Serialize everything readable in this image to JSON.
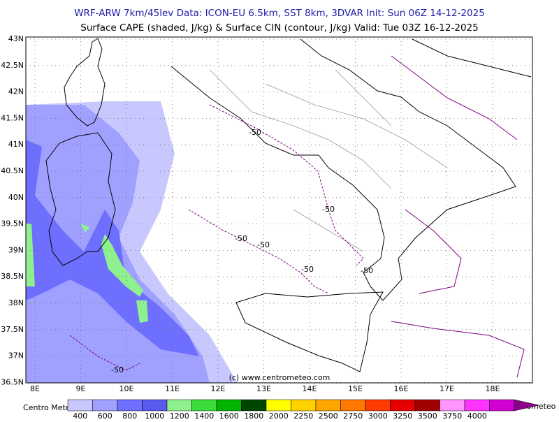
{
  "header": {
    "line1": "WRF-ARW 7km/45lev   Data: ICON-EU 6.5km, SST 8km, 3DVAR   Init: Sun 06Z 14-12-2025",
    "line2": "Surface CAPE (shaded, J/kg) & Surface CIN (contour, J/kg)   Valid: Tue 03Z 16-12-2025"
  },
  "map": {
    "lat_labels": [
      "43N",
      "42.5N",
      "42N",
      "41.5N",
      "41N",
      "40.5N",
      "40N",
      "39.5N",
      "39N",
      "38.5N",
      "38N",
      "37.5N",
      "37N",
      "36.5N"
    ],
    "lon_labels": [
      "8E",
      "9E",
      "10E",
      "11E",
      "12E",
      "13E",
      "14E",
      "15E",
      "16E",
      "17E",
      "18E"
    ],
    "contour_labels": [
      "-50",
      "-50",
      "-50",
      "-50",
      "-50",
      "-50",
      "-50"
    ],
    "copyright": "(c) www.centrometeo.com"
  },
  "colorbar": {
    "labels": [
      "400",
      "600",
      "800",
      "1000",
      "1200",
      "1400",
      "1600",
      "1800",
      "2000",
      "2250",
      "2500",
      "2750",
      "3000",
      "3250",
      "3500",
      "3750",
      "4000"
    ],
    "colors": [
      "#c8c8ff",
      "#a0a0ff",
      "#6e6eff",
      "#5a5af0",
      "#8ef08e",
      "#3cdc3c",
      "#00b400",
      "#004600",
      "#ffff00",
      "#ffd200",
      "#ffa500",
      "#ff7800",
      "#ff3c00",
      "#e60000",
      "#a00000",
      "#ff96ff",
      "#ff32ff",
      "#d200d2",
      "#8c008c"
    ]
  },
  "logos": {
    "left": "Centro Meteo Italiano",
    "right": "centrometeo"
  }
}
